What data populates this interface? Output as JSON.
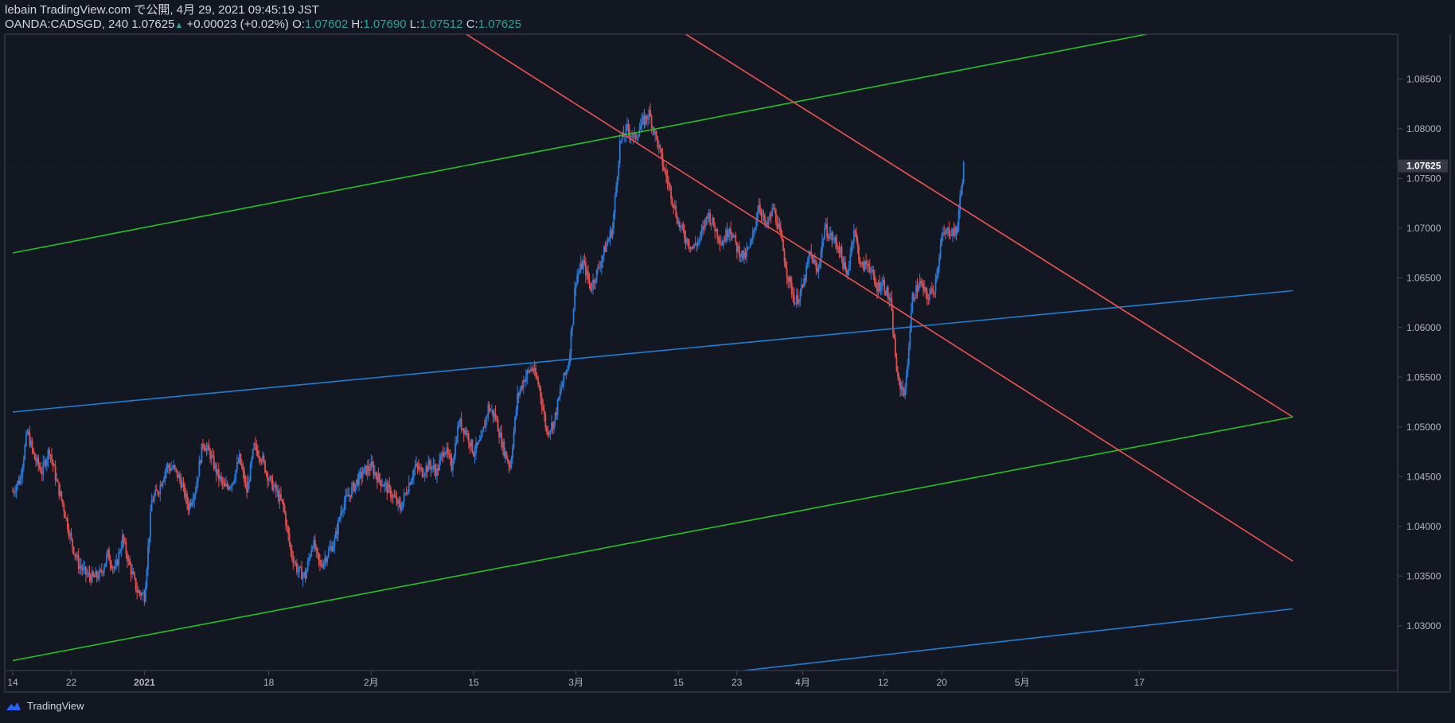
{
  "header": {
    "line1": "lebain TradingView.com で公開, 4月 29, 2021 09:45:19 JST",
    "symbol": "OANDA:CADSGD, 240 1.07625",
    "up_arrow": "▲",
    "change": "+0.00023 (+0.02%)",
    "o_label": " O:",
    "o_value": "1.07602",
    "h_label": " H:",
    "h_value": "1.07690",
    "l_label": " L:",
    "l_value": "1.07512",
    "c_label": " C:",
    "c_value": "1.07625"
  },
  "footer": {
    "brand": "TradingView",
    "logo_icon": "tradingview-cloud-icon"
  },
  "colors": {
    "background": "#131722",
    "up": "#2a7ad9",
    "down": "#e0504f",
    "green": "#21c521",
    "red": "#ef5350",
    "blue": "#1e7fd9",
    "axis": "#434651"
  },
  "chart_data": {
    "type": "candlestick",
    "symbol": "OANDA:CADSGD",
    "interval": "240",
    "ylim": [
      1.0255,
      1.0895
    ],
    "x_ticks": [
      {
        "label": "14",
        "day": 0
      },
      {
        "label": "22",
        "day": 8
      },
      {
        "label": "2021",
        "day": 18,
        "bold": true
      },
      {
        "label": "18",
        "day": 35
      },
      {
        "label": "2月",
        "day": 49
      },
      {
        "label": "15",
        "day": 63
      },
      {
        "label": "3月",
        "day": 77
      },
      {
        "label": "15",
        "day": 91
      },
      {
        "label": "23",
        "day": 99
      },
      {
        "label": "4月",
        "day": 108
      },
      {
        "label": "12",
        "day": 119
      },
      {
        "label": "20",
        "day": 127
      },
      {
        "label": "5月",
        "day": 138
      },
      {
        "label": "17",
        "day": 154
      }
    ],
    "y_ticks": [
      "1.08500",
      "1.08000",
      "1.07500",
      "1.07000",
      "1.06500",
      "1.06000",
      "1.05500",
      "1.05000",
      "1.04500",
      "1.04000",
      "1.03500",
      "1.03000"
    ],
    "current_price": "1.07625",
    "close_path": [
      [
        0,
        1.0435
      ],
      [
        1,
        1.0448
      ],
      [
        2,
        1.0495
      ],
      [
        3,
        1.0468
      ],
      [
        4,
        1.0455
      ],
      [
        5,
        1.0478
      ],
      [
        6,
        1.0445
      ],
      [
        7,
        1.0418
      ],
      [
        8,
        1.0385
      ],
      [
        9,
        1.0362
      ],
      [
        10,
        1.0352
      ],
      [
        11,
        1.0348
      ],
      [
        12,
        1.0352
      ],
      [
        13,
        1.0372
      ],
      [
        14,
        1.0355
      ],
      [
        15,
        1.0388
      ],
      [
        16,
        1.036
      ],
      [
        17,
        1.0335
      ],
      [
        18,
        1.033
      ],
      [
        19,
        1.0425
      ],
      [
        20,
        1.0438
      ],
      [
        21,
        1.046
      ],
      [
        22,
        1.0458
      ],
      [
        23,
        1.0445
      ],
      [
        24,
        1.042
      ],
      [
        25,
        1.0438
      ],
      [
        26,
        1.0485
      ],
      [
        27,
        1.0472
      ],
      [
        28,
        1.0452
      ],
      [
        29,
        1.0438
      ],
      [
        30,
        1.0445
      ],
      [
        31,
        1.0468
      ],
      [
        32,
        1.0435
      ],
      [
        33,
        1.048
      ],
      [
        34,
        1.047
      ],
      [
        35,
        1.0448
      ],
      [
        36,
        1.0435
      ],
      [
        37,
        1.042
      ],
      [
        38,
        1.0375
      ],
      [
        39,
        1.0355
      ],
      [
        40,
        1.035
      ],
      [
        41,
        1.0385
      ],
      [
        42,
        1.036
      ],
      [
        43,
        1.0372
      ],
      [
        44,
        1.0385
      ],
      [
        45,
        1.042
      ],
      [
        46,
        1.0432
      ],
      [
        47,
        1.0445
      ],
      [
        48,
        1.0455
      ],
      [
        49,
        1.046
      ],
      [
        50,
        1.0448
      ],
      [
        51,
        1.044
      ],
      [
        52,
        1.043
      ],
      [
        53,
        1.0418
      ],
      [
        54,
        1.044
      ],
      [
        55,
        1.046
      ],
      [
        56,
        1.0455
      ],
      [
        57,
        1.0462
      ],
      [
        58,
        1.0455
      ],
      [
        59,
        1.048
      ],
      [
        60,
        1.046
      ],
      [
        61,
        1.0505
      ],
      [
        62,
        1.0495
      ],
      [
        63,
        1.0475
      ],
      [
        64,
        1.0485
      ],
      [
        65,
        1.052
      ],
      [
        66,
        1.051
      ],
      [
        67,
        1.048
      ],
      [
        68,
        1.046
      ],
      [
        69,
        1.053
      ],
      [
        70,
        1.055
      ],
      [
        71,
        1.056
      ],
      [
        72,
        1.054
      ],
      [
        73,
        1.0495
      ],
      [
        74,
        1.0505
      ],
      [
        75,
        1.054
      ],
      [
        76,
        1.0565
      ],
      [
        77,
        1.065
      ],
      [
        78,
        1.0665
      ],
      [
        79,
        1.064
      ],
      [
        80,
        1.0658
      ],
      [
        81,
        1.068
      ],
      [
        82,
        1.07
      ],
      [
        83,
        1.0785
      ],
      [
        84,
        1.08
      ],
      [
        85,
        1.079
      ],
      [
        86,
        1.0805
      ],
      [
        87,
        1.0815
      ],
      [
        88,
        1.079
      ],
      [
        89,
        1.076
      ],
      [
        90,
        1.0735
      ],
      [
        91,
        1.0705
      ],
      [
        92,
        1.069
      ],
      [
        93,
        1.068
      ],
      [
        94,
        1.069
      ],
      [
        95,
        1.0715
      ],
      [
        96,
        1.07
      ],
      [
        97,
        1.0685
      ],
      [
        98,
        1.0702
      ],
      [
        99,
        1.068
      ],
      [
        100,
        1.067
      ],
      [
        101,
        1.0685
      ],
      [
        102,
        1.0725
      ],
      [
        103,
        1.07
      ],
      [
        104,
        1.072
      ],
      [
        105,
        1.069
      ],
      [
        106,
        1.065
      ],
      [
        107,
        1.0625
      ],
      [
        108,
        1.064
      ],
      [
        109,
        1.0675
      ],
      [
        110,
        1.0655
      ],
      [
        111,
        1.07
      ],
      [
        112,
        1.069
      ],
      [
        113,
        1.068
      ],
      [
        114,
        1.065
      ],
      [
        115,
        1.07
      ],
      [
        116,
        1.066
      ],
      [
        117,
        1.0665
      ],
      [
        118,
        1.064
      ],
      [
        119,
        1.0645
      ],
      [
        120,
        1.0625
      ],
      [
        121,
        1.0545
      ],
      [
        122,
        1.0535
      ],
      [
        123,
        1.063
      ],
      [
        124,
        1.0645
      ],
      [
        125,
        1.063
      ],
      [
        126,
        1.064
      ],
      [
        127,
        1.069
      ],
      [
        128,
        1.0698
      ],
      [
        129,
        1.0695
      ],
      [
        130,
        1.0762
      ]
    ],
    "trend_lines": [
      {
        "color": "green",
        "from": [
          0,
          1.0675
        ],
        "to": [
          155,
          1.0895
        ]
      },
      {
        "color": "green",
        "from": [
          0,
          1.0265
        ],
        "to": [
          175,
          1.051
        ]
      },
      {
        "color": "blue",
        "from": [
          0,
          1.0515
        ],
        "to": [
          175,
          1.0637
        ]
      },
      {
        "color": "blue",
        "from": [
          100,
          1.0255
        ],
        "to": [
          175,
          1.0317
        ]
      },
      {
        "color": "red",
        "from": [
          62,
          1.0895
        ],
        "to": [
          175,
          1.0365
        ]
      },
      {
        "color": "red",
        "from": [
          92,
          1.0895
        ],
        "to": [
          175,
          1.051
        ]
      }
    ]
  }
}
